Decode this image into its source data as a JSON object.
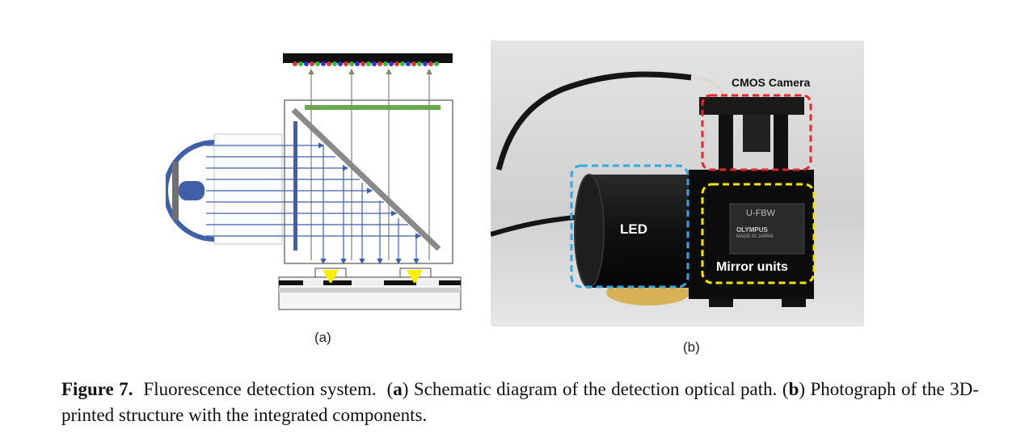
{
  "figure": {
    "label_a": "(a)",
    "label_b": "(b)",
    "photo_labels": {
      "cmos": "CMOS Camera",
      "led": "LED",
      "mirror": "Mirror units",
      "filter_line1": "U-FBW",
      "filter_line2": "OLYMPUS",
      "filter_line3": "MADE IN JAPAN"
    }
  },
  "caption": {
    "title": "Figure 7.",
    "text_1": "Fluorescence detection system.",
    "a_open": "(",
    "a_letter": "a",
    "a_text": ") Schematic diagram of the detection optical path.",
    "b_open": "(",
    "b_letter": "b",
    "b_text": ") Photograph of the 3D-printed structure with the integrated components."
  },
  "colors": {
    "detector_bar": "#111111",
    "green_filter": "#6aa84f",
    "blue_optics": "#3f5fa8",
    "fluorescence_yellow": "#ffee00",
    "cmos_box": "#e8262b",
    "led_box": "#33a8e0",
    "mirror_box": "#f2e600"
  }
}
